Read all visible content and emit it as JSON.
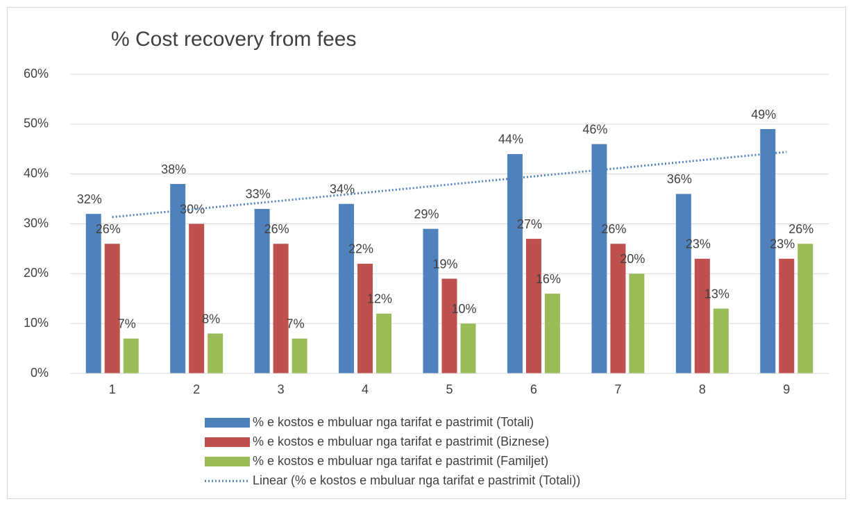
{
  "chart_data": {
    "type": "bar",
    "title": "%   Cost recovery from fees",
    "categories": [
      "1",
      "2",
      "3",
      "4",
      "5",
      "6",
      "7",
      "8",
      "9"
    ],
    "ylim": [
      0,
      60
    ],
    "yticks": [
      {
        "value": 0,
        "label": "0%"
      },
      {
        "value": 10,
        "label": "10%"
      },
      {
        "value": 20,
        "label": "20%"
      },
      {
        "value": 30,
        "label": "30%"
      },
      {
        "value": 40,
        "label": "40%"
      },
      {
        "value": 50,
        "label": "50%"
      },
      {
        "value": 60,
        "label": "60%"
      }
    ],
    "grid": true,
    "legend": "bottom",
    "series": [
      {
        "name": "% e kostos e mbuluar nga tarifat e pastrimit (Totali)",
        "color": "#4f81bd",
        "values": [
          32,
          38,
          33,
          34,
          29,
          44,
          46,
          36,
          49
        ],
        "value_labels": [
          "32%",
          "38%",
          "33%",
          "34%",
          "29%",
          "44%",
          "46%",
          "36%",
          "49%"
        ]
      },
      {
        "name": "% e kostos e mbuluar nga tarifat e pastrimit (Biznese)",
        "color": "#c0504d",
        "values": [
          26,
          30,
          26,
          22,
          19,
          27,
          26,
          23,
          23
        ],
        "value_labels": [
          "26%",
          "30%",
          "26%",
          "22%",
          "19%",
          "27%",
          "26%",
          "23%",
          "23%"
        ]
      },
      {
        "name": "% e kostos e mbuluar nga tarifat e pastrimit (Familjet)",
        "color": "#9bbb59",
        "values": [
          7,
          8,
          7,
          12,
          10,
          16,
          20,
          13,
          26
        ],
        "value_labels": [
          "7%",
          "8%",
          "7%",
          "12%",
          "10%",
          "16%",
          "20%",
          "13%",
          "26%"
        ]
      }
    ],
    "trendline": {
      "name": "Linear (% e kostos e mbuluar nga tarifat e pastrimit (Totali))",
      "type": "linear",
      "color": "#4f81bd"
    }
  }
}
